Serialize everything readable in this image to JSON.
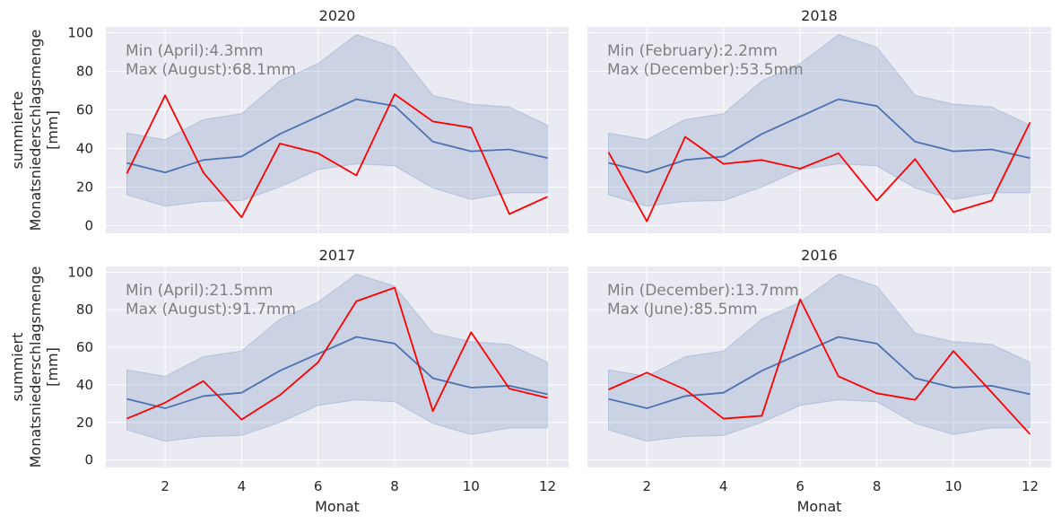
{
  "chart_data": [
    {
      "type": "line",
      "title": "2020",
      "xlabel": "",
      "ylabel": [
        "summierte",
        "Monatsniederschlagsmenge",
        "[mm]"
      ],
      "x": [
        1,
        2,
        3,
        4,
        5,
        6,
        7,
        8,
        9,
        10,
        11,
        12
      ],
      "xticks": [
        2,
        4,
        6,
        8,
        10,
        12
      ],
      "yticks": [
        0,
        20,
        40,
        60,
        80,
        100
      ],
      "xlim": [
        0.45,
        12.55
      ],
      "ylim": [
        -4,
        103
      ],
      "show_xticklabels": false,
      "show_yticklabels": true,
      "grid": true,
      "band": {
        "lower": [
          16,
          10,
          12.5,
          13,
          20,
          29,
          32,
          31,
          19.5,
          13.5,
          17,
          17
        ],
        "upper": [
          48,
          44.5,
          55,
          58,
          75,
          84,
          99,
          92.5,
          67.5,
          63,
          61.5,
          52
        ]
      },
      "series": [
        {
          "color": "#4c72b0",
          "values": [
            32.5,
            27.5,
            34,
            35.8,
            47.5,
            56.5,
            65.5,
            62,
            43.5,
            38.5,
            39.5,
            35
          ]
        },
        {
          "color": "#ff0000",
          "values": [
            27,
            67.5,
            27.5,
            4.3,
            42.5,
            37.5,
            26,
            68.1,
            54,
            50.8,
            6,
            15
          ]
        }
      ],
      "annotations": [
        "Min (April):4.3mm",
        "Max (August):68.1mm"
      ]
    },
    {
      "type": "line",
      "title": "2018",
      "xlabel": "",
      "ylabel": [],
      "x": [
        1,
        2,
        3,
        4,
        5,
        6,
        7,
        8,
        9,
        10,
        11,
        12
      ],
      "xticks": [
        2,
        4,
        6,
        8,
        10,
        12
      ],
      "yticks": [
        0,
        20,
        40,
        60,
        80,
        100
      ],
      "xlim": [
        0.45,
        12.55
      ],
      "ylim": [
        -4,
        103
      ],
      "show_xticklabels": false,
      "show_yticklabels": false,
      "grid": true,
      "band": {
        "lower": [
          16,
          10,
          12.5,
          13,
          20,
          29,
          32,
          31,
          19.5,
          13.5,
          17,
          17
        ],
        "upper": [
          48,
          44.5,
          55,
          58,
          75,
          84,
          99,
          92.5,
          67.5,
          63,
          61.5,
          52
        ]
      },
      "series": [
        {
          "color": "#4c72b0",
          "values": [
            32.5,
            27.5,
            34,
            35.8,
            47.5,
            56.5,
            65.5,
            62,
            43.5,
            38.5,
            39.5,
            35
          ]
        },
        {
          "color": "#ff0000",
          "values": [
            38,
            2.2,
            46,
            32,
            34,
            29.5,
            37.5,
            13,
            34.5,
            7,
            13,
            53.5
          ]
        }
      ],
      "annotations": [
        "Min (February):2.2mm",
        "Max (December):53.5mm"
      ]
    },
    {
      "type": "line",
      "title": "2017",
      "xlabel": "Monat",
      "ylabel": [
        "summiert",
        "Monatsniederschlagsmenge",
        "[mm]"
      ],
      "x": [
        1,
        2,
        3,
        4,
        5,
        6,
        7,
        8,
        9,
        10,
        11,
        12
      ],
      "xticks": [
        2,
        4,
        6,
        8,
        10,
        12
      ],
      "yticks": [
        0,
        20,
        40,
        60,
        80,
        100
      ],
      "xlim": [
        0.45,
        12.55
      ],
      "ylim": [
        -4,
        103
      ],
      "show_xticklabels": true,
      "show_yticklabels": true,
      "grid": true,
      "band": {
        "lower": [
          16,
          10,
          12.5,
          13,
          20,
          29,
          32,
          31,
          19.5,
          13.5,
          17,
          17
        ],
        "upper": [
          48,
          44.5,
          55,
          58,
          75,
          84,
          99,
          92.5,
          67.5,
          63,
          61.5,
          52
        ]
      },
      "series": [
        {
          "color": "#4c72b0",
          "values": [
            32.5,
            27.5,
            34,
            35.8,
            47.5,
            56.5,
            65.5,
            62,
            43.5,
            38.5,
            39.5,
            35
          ]
        },
        {
          "color": "#ff0000",
          "values": [
            22,
            30.5,
            42,
            21.5,
            34.5,
            52,
            84.5,
            91.7,
            26,
            68,
            38,
            33
          ]
        }
      ],
      "annotations": [
        "Min (April):21.5mm",
        "Max (August):91.7mm"
      ]
    },
    {
      "type": "line",
      "title": "2016",
      "xlabel": "Monat",
      "ylabel": [],
      "x": [
        1,
        2,
        3,
        4,
        5,
        6,
        7,
        8,
        9,
        10,
        11,
        12
      ],
      "xticks": [
        2,
        4,
        6,
        8,
        10,
        12
      ],
      "yticks": [
        0,
        20,
        40,
        60,
        80,
        100
      ],
      "xlim": [
        0.45,
        12.55
      ],
      "ylim": [
        -4,
        103
      ],
      "show_xticklabels": true,
      "show_yticklabels": false,
      "grid": true,
      "band": {
        "lower": [
          16,
          10,
          12.5,
          13,
          20,
          29,
          32,
          31,
          19.5,
          13.5,
          17,
          17
        ],
        "upper": [
          48,
          44.5,
          55,
          58,
          75,
          84,
          99,
          92.5,
          67.5,
          63,
          61.5,
          52
        ]
      },
      "series": [
        {
          "color": "#4c72b0",
          "values": [
            32.5,
            27.5,
            34,
            35.8,
            47.5,
            56.5,
            65.5,
            62,
            43.5,
            38.5,
            39.5,
            35
          ]
        },
        {
          "color": "#ff0000",
          "values": [
            37.5,
            46.5,
            37.5,
            22,
            23.5,
            85.5,
            44.5,
            35.5,
            32,
            58,
            36,
            13.7
          ]
        }
      ],
      "annotations": [
        "Min (December):13.7mm",
        "Max (June):85.5mm"
      ]
    }
  ],
  "style": {
    "panel_background": "#eaeaf2",
    "grid_color": "#ffffff",
    "band_fill": "#4c72b0",
    "band_fill_opacity": 0.2,
    "annotation_color": "#808080"
  }
}
